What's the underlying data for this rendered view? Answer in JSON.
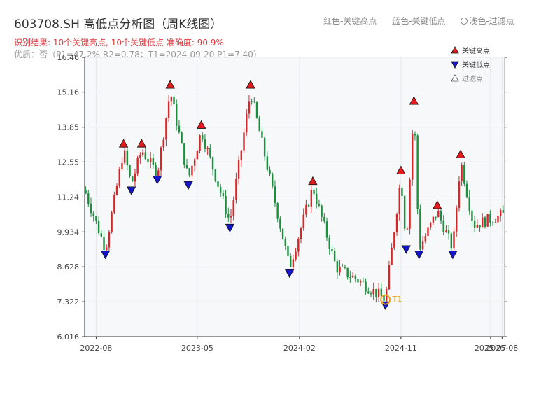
{
  "title": "603708.SH 高低点分析图（周K线图）",
  "legend_top": {
    "red": "红色-关键高点",
    "blue": "蓝色-关键低点",
    "light": "浅色-过滤点"
  },
  "result_text": "识别结果: 10个关键高点, 10个关键低点   准确度: 90.9%",
  "quality_text": "优质：否（P1=47.2%  R2=0.78；T1=2024-09-20 P1=7.40）",
  "colors": {
    "up": "#d62728",
    "down": "#1a8f3c",
    "high": "#e41a1c",
    "low": "#1515cc",
    "t1": "#f0a020",
    "grid": "#e4e8ee",
    "plot_bg": "#f7f8fa"
  },
  "chart_data": {
    "type": "candlestick",
    "title": "603708.SH 高低点分析图（周K线图）",
    "yticks": [
      "6.016",
      "7.322",
      "8.628",
      "9.934",
      "11.24",
      "12.55",
      "13.85",
      "15.16",
      "16.46"
    ],
    "ylim": [
      6.016,
      16.46
    ],
    "xlim": [
      "2022-07-01",
      "2025-08-08"
    ],
    "xticks": [
      {
        "date": "2022-08-01",
        "label": "2022-08"
      },
      {
        "date": "2023-05-01",
        "label": "2023-05"
      },
      {
        "date": "2024-02-01",
        "label": "2024-02"
      },
      {
        "date": "2024-11-01",
        "label": "2024-11"
      },
      {
        "date": "2025-07-01",
        "label": "2025-07"
      },
      {
        "date": "2025-08-01",
        "label": "2025-08"
      }
    ],
    "price_path": [
      {
        "date": "2022-07-01",
        "price": 11.5
      },
      {
        "date": "2022-08-26",
        "price": 9.3
      },
      {
        "date": "2022-10-14",
        "price": 13.0
      },
      {
        "date": "2022-11-04",
        "price": 11.7
      },
      {
        "date": "2022-12-02",
        "price": 13.0
      },
      {
        "date": "2023-01-13",
        "price": 12.1
      },
      {
        "date": "2023-02-17",
        "price": 15.2
      },
      {
        "date": "2023-04-07",
        "price": 11.9
      },
      {
        "date": "2023-05-12",
        "price": 13.7
      },
      {
        "date": "2023-07-28",
        "price": 10.3
      },
      {
        "date": "2023-09-22",
        "price": 15.2
      },
      {
        "date": "2024-01-05",
        "price": 8.6
      },
      {
        "date": "2024-03-08",
        "price": 11.6
      },
      {
        "date": "2024-05-10",
        "price": 8.6
      },
      {
        "date": "2024-07-12",
        "price": 8.1
      },
      {
        "date": "2024-09-20",
        "price": 7.4
      },
      {
        "date": "2024-11-01",
        "price": 12.0
      },
      {
        "date": "2024-11-15",
        "price": 9.5
      },
      {
        "date": "2024-12-06",
        "price": 14.6
      },
      {
        "date": "2024-12-20",
        "price": 9.3
      },
      {
        "date": "2025-02-07",
        "price": 10.7
      },
      {
        "date": "2025-03-21",
        "price": 9.3
      },
      {
        "date": "2025-04-11",
        "price": 12.6
      },
      {
        "date": "2025-05-16",
        "price": 10.2
      },
      {
        "date": "2025-08-08",
        "price": 10.6
      }
    ],
    "key_highs": [
      {
        "date": "2022-10-14",
        "price": 13.0
      },
      {
        "date": "2022-12-02",
        "price": 13.0
      },
      {
        "date": "2023-02-17",
        "price": 15.2
      },
      {
        "date": "2023-05-12",
        "price": 13.7
      },
      {
        "date": "2023-09-22",
        "price": 15.2
      },
      {
        "date": "2024-03-08",
        "price": 11.6
      },
      {
        "date": "2024-11-01",
        "price": 12.0
      },
      {
        "date": "2024-12-06",
        "price": 14.6
      },
      {
        "date": "2025-02-07",
        "price": 10.7
      },
      {
        "date": "2025-04-11",
        "price": 12.6
      }
    ],
    "key_lows": [
      {
        "date": "2022-08-26",
        "price": 9.3
      },
      {
        "date": "2022-11-04",
        "price": 11.7
      },
      {
        "date": "2023-01-13",
        "price": 12.1
      },
      {
        "date": "2023-04-07",
        "price": 11.9
      },
      {
        "date": "2023-07-28",
        "price": 10.3
      },
      {
        "date": "2024-01-05",
        "price": 8.6
      },
      {
        "date": "2024-09-20",
        "price": 7.4
      },
      {
        "date": "2024-11-15",
        "price": 9.5
      },
      {
        "date": "2024-12-20",
        "price": 9.3
      },
      {
        "date": "2025-03-21",
        "price": 9.3
      }
    ],
    "t1": {
      "date": "2024-09-20",
      "price": 7.4,
      "label": "T1"
    },
    "legend": [
      {
        "label": "关键高点",
        "marker": "triangle-up",
        "color": "#e41a1c"
      },
      {
        "label": "关键低点",
        "marker": "triangle-down",
        "color": "#1515cc"
      },
      {
        "label": "过滤点",
        "marker": "triangle-up-hollow",
        "color": "#888888"
      }
    ],
    "grid": true,
    "legend_position": "top-right"
  }
}
